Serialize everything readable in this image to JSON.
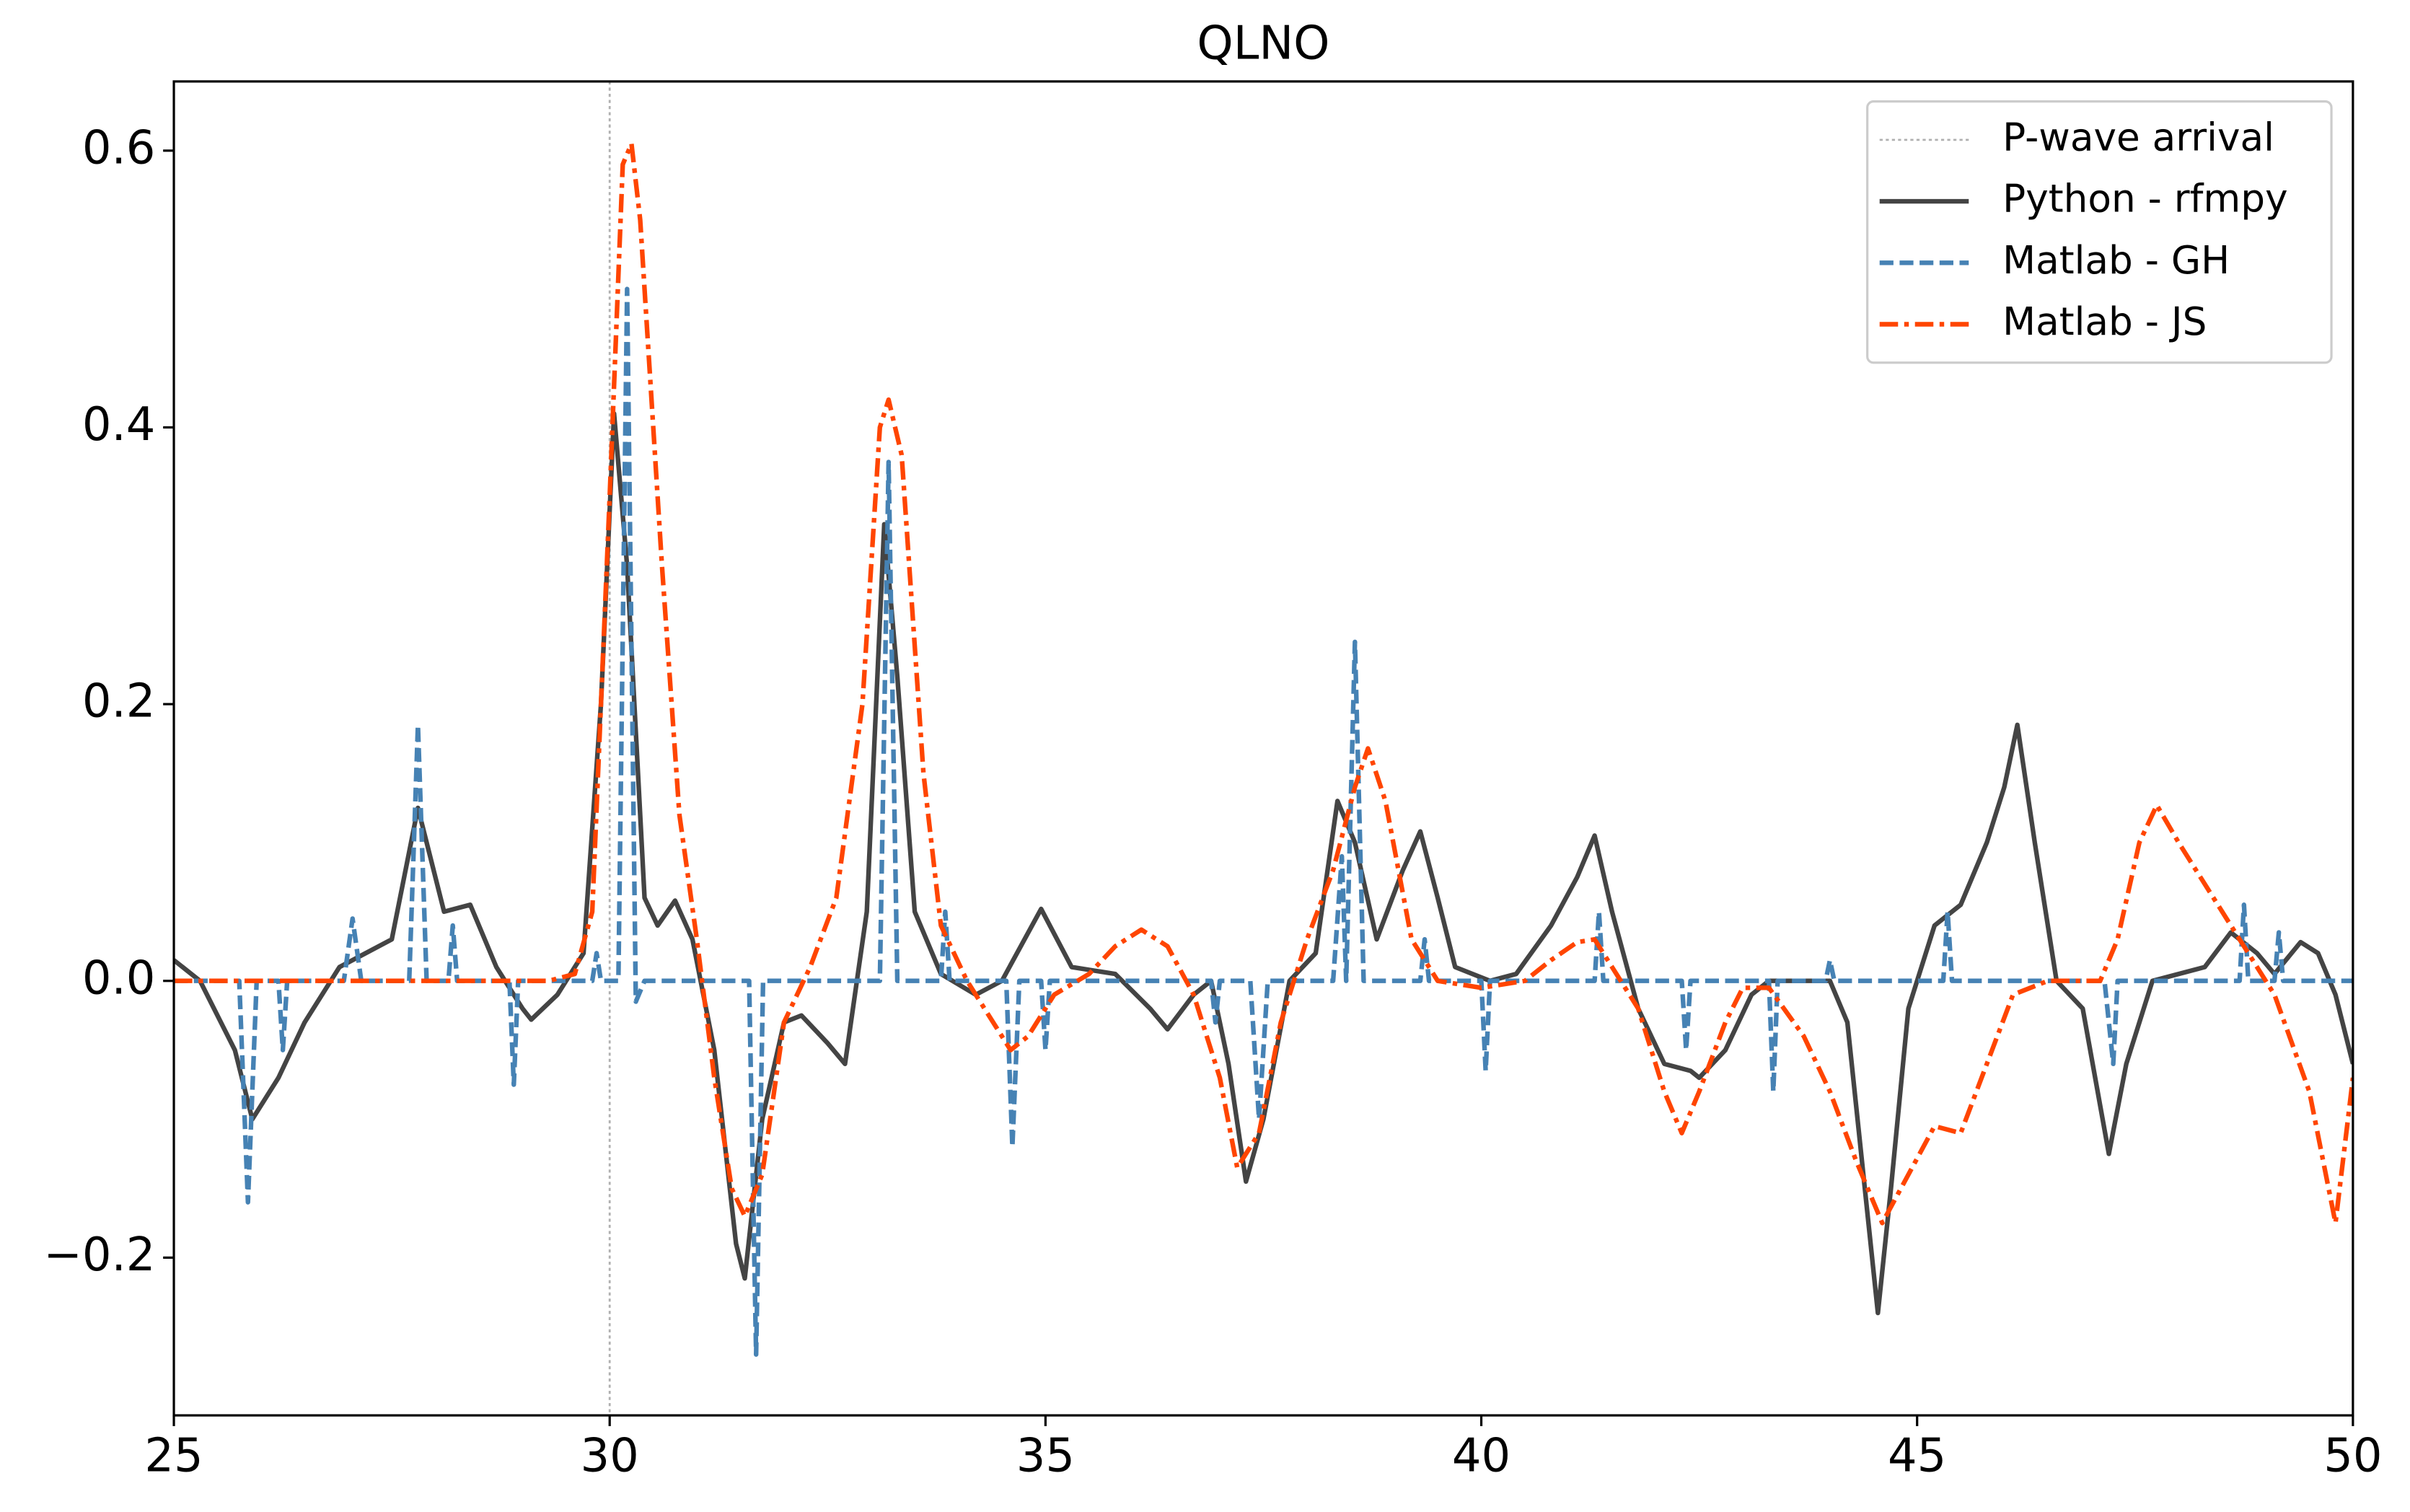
{
  "chart_data": {
    "type": "line",
    "title": "QLNO",
    "xlim": [
      25,
      50
    ],
    "ylim": [
      -0.314,
      0.65
    ],
    "xticks": [
      25,
      30,
      35,
      40,
      45,
      50
    ],
    "yticks": [
      {
        "value": -0.2,
        "label": "−0.2"
      },
      {
        "value": 0,
        "label": "0.0"
      },
      0.2,
      0.4,
      0.6
    ],
    "legend": "upper right",
    "vline": {
      "name": "P-wave arrival",
      "x": 30,
      "color": "#b0b0b0",
      "dash": "dotted"
    },
    "series": [
      {
        "name": "Python - rfmpy",
        "color": "#444444",
        "dash": "solid",
        "x": [
          25,
          25.3,
          25.7,
          25.9,
          26.2,
          26.5,
          26.9,
          27.2,
          27.5,
          27.8,
          28.1,
          28.4,
          28.7,
          29.0,
          29.1,
          29.4,
          29.7,
          29.9,
          30.05,
          30.2,
          30.4,
          30.55,
          30.75,
          30.95,
          31.2,
          31.45,
          31.55,
          31.75,
          32.0,
          32.2,
          32.5,
          32.7,
          32.95,
          33.15,
          33.3,
          33.5,
          33.8,
          34.2,
          34.5,
          34.95,
          35.3,
          35.8,
          36.2,
          36.4,
          36.7,
          36.9,
          37.1,
          37.3,
          37.5,
          37.8,
          38.1,
          38.35,
          38.55,
          38.8,
          39.1,
          39.3,
          39.5,
          39.7,
          40.1,
          40.4,
          40.8,
          41.1,
          41.3,
          41.5,
          41.8,
          42.1,
          42.4,
          42.5,
          42.8,
          43.1,
          43.3,
          44.0,
          44.2,
          44.4,
          44.55,
          44.7,
          44.9,
          45.2,
          45.5,
          45.8,
          46.0,
          46.15,
          46.35,
          46.6,
          46.9,
          47.1,
          47.2,
          47.4,
          47.7,
          48.3,
          48.6,
          48.9,
          49.1,
          49.4,
          49.6,
          49.8,
          50.0
        ],
        "values": [
          0.015,
          0,
          -0.05,
          -0.1,
          -0.07,
          -0.03,
          0.01,
          0.02,
          0.03,
          0.125,
          0.05,
          0.055,
          0.01,
          -0.02,
          -0.028,
          -0.01,
          0.02,
          0.2,
          0.41,
          0.3,
          0.06,
          0.04,
          0.058,
          0.03,
          -0.05,
          -0.19,
          -0.215,
          -0.1,
          -0.03,
          -0.025,
          -0.045,
          -0.06,
          0.05,
          0.33,
          0.22,
          0.05,
          0.005,
          -0.01,
          0,
          0.052,
          0.01,
          0.005,
          -0.02,
          -0.035,
          -0.01,
          0,
          -0.06,
          -0.145,
          -0.1,
          0,
          0.02,
          0.13,
          0.1,
          0.03,
          0.08,
          0.108,
          0.06,
          0.01,
          0,
          0.005,
          0.04,
          0.075,
          0.105,
          0.05,
          -0.02,
          -0.06,
          -0.065,
          -0.07,
          -0.05,
          -0.01,
          0,
          0,
          -0.03,
          -0.15,
          -0.24,
          -0.15,
          -0.02,
          0.04,
          0.055,
          0.1,
          0.14,
          0.185,
          0.1,
          0,
          -0.02,
          -0.09,
          -0.125,
          -0.06,
          0,
          0.01,
          0.035,
          0.02,
          0.005,
          0.028,
          0.02,
          -0.01,
          -0.06
        ]
      },
      {
        "name": "Matlab - GH",
        "color": "#4682b4",
        "dash": "dashed",
        "x": [
          25,
          25.75,
          25.85,
          25.95,
          26.2,
          26.25,
          26.3,
          26.95,
          27.05,
          27.15,
          27.7,
          27.8,
          27.9,
          28.15,
          28.2,
          28.25,
          28.85,
          28.9,
          28.95,
          29.8,
          29.85,
          29.9,
          30.1,
          30.2,
          30.3,
          30.4,
          31.6,
          31.68,
          31.76,
          33.1,
          33.2,
          33.3,
          33.8,
          33.85,
          33.9,
          34.55,
          34.62,
          34.7,
          34.95,
          35.0,
          35.05,
          36.9,
          36.95,
          37.0,
          37.35,
          37.45,
          37.55,
          38.3,
          38.4,
          38.45,
          38.55,
          38.65,
          39.3,
          39.35,
          39.4,
          40.0,
          40.05,
          40.1,
          41.3,
          41.35,
          41.4,
          42.3,
          42.35,
          42.4,
          43.3,
          43.35,
          43.4,
          43.95,
          44.0,
          44.05,
          45.3,
          45.35,
          45.4,
          47.15,
          47.25,
          47.3,
          48.7,
          48.75,
          48.8,
          49.1,
          49.15,
          49.2,
          50
        ],
        "values": [
          0,
          0,
          -0.16,
          0,
          0,
          -0.05,
          0,
          0,
          0.045,
          0,
          0,
          0.185,
          0,
          0,
          0.04,
          0,
          0,
          -0.075,
          0,
          0,
          0.02,
          0,
          0,
          0.5,
          -0.015,
          0,
          0,
          -0.27,
          0,
          0,
          0.375,
          0,
          0,
          0.05,
          0,
          0,
          -0.12,
          0,
          0,
          -0.05,
          0,
          0,
          -0.03,
          0,
          0,
          -0.1,
          0,
          0,
          0.09,
          0,
          0.245,
          0,
          0,
          0.03,
          0,
          0,
          -0.065,
          0,
          0,
          0.05,
          0,
          0,
          -0.05,
          0,
          0,
          -0.08,
          0,
          0,
          0.015,
          0,
          0,
          0.05,
          0,
          0,
          -0.06,
          0,
          0,
          0.055,
          0,
          0,
          0.035,
          0,
          0
        ]
      },
      {
        "name": "Matlab - JS",
        "color": "#ff4500",
        "dash": "dashdot",
        "x": [
          25,
          29.3,
          29.6,
          29.8,
          30.0,
          30.15,
          30.25,
          30.35,
          30.6,
          30.8,
          31.0,
          31.2,
          31.4,
          31.55,
          31.75,
          32.0,
          32.3,
          32.6,
          32.9,
          33.1,
          33.2,
          33.35,
          33.6,
          33.8,
          34.1,
          34.4,
          34.6,
          34.8,
          35.1,
          35.5,
          35.8,
          36.1,
          36.4,
          36.7,
          37.0,
          37.2,
          37.45,
          37.7,
          38.0,
          38.3,
          38.55,
          38.7,
          38.9,
          39.2,
          39.5,
          40.0,
          40.5,
          40.8,
          41.1,
          41.3,
          41.5,
          41.8,
          42.1,
          42.3,
          42.5,
          42.8,
          43.0,
          43.3,
          43.7,
          44.0,
          44.3,
          44.6,
          44.9,
          45.2,
          45.5,
          45.8,
          46.1,
          46.5,
          47.1,
          47.3,
          47.55,
          47.75,
          48.0,
          48.4,
          48.7,
          49.1,
          49.5,
          49.8,
          50.0
        ],
        "values": [
          0,
          0,
          0.005,
          0.05,
          0.35,
          0.59,
          0.605,
          0.55,
          0.3,
          0.12,
          0.03,
          -0.07,
          -0.15,
          -0.17,
          -0.14,
          -0.03,
          0.01,
          0.06,
          0.2,
          0.4,
          0.42,
          0.38,
          0.15,
          0.04,
          0,
          -0.03,
          -0.05,
          -0.04,
          -0.01,
          0.005,
          0.025,
          0.037,
          0.025,
          -0.01,
          -0.07,
          -0.135,
          -0.11,
          -0.03,
          0.03,
          0.08,
          0.14,
          0.168,
          0.13,
          0.03,
          0,
          -0.005,
          0,
          0.015,
          0.028,
          0.03,
          0.01,
          -0.02,
          -0.08,
          -0.11,
          -0.08,
          -0.03,
          -0.005,
          -0.005,
          -0.04,
          -0.08,
          -0.13,
          -0.175,
          -0.14,
          -0.105,
          -0.11,
          -0.06,
          -0.01,
          0,
          0,
          0.03,
          0.1,
          0.127,
          0.1,
          0.06,
          0.03,
          -0.01,
          -0.08,
          -0.175,
          -0.07
        ]
      }
    ]
  }
}
